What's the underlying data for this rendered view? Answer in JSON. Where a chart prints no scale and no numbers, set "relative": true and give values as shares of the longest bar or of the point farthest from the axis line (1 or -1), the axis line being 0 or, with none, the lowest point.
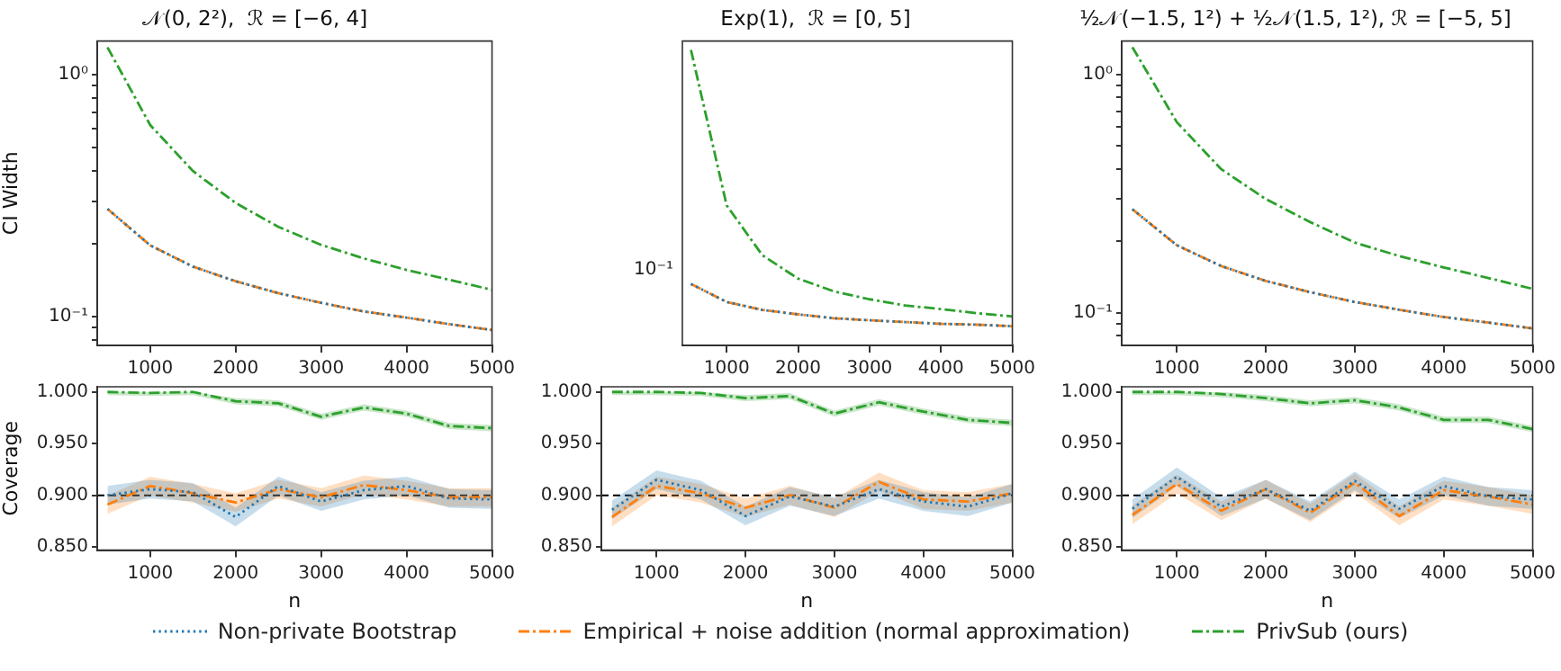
{
  "chart_data": [
    {
      "type": "line",
      "title": "𝒩(0, 2²),  ℛ = [−6, 4]",
      "ylabel": "CI Width",
      "log": "y",
      "x": [
        500,
        1000,
        1500,
        2000,
        2500,
        3000,
        3500,
        4000,
        4500,
        5000
      ],
      "xlim": [
        380,
        5000
      ],
      "xticks": [
        1000,
        2000,
        3000,
        4000,
        5000
      ],
      "ylim": [
        0.076,
        1.38
      ],
      "yticks": [
        {
          "value": 1,
          "label": "10⁰"
        },
        {
          "value": 0.1,
          "label": "10⁻¹"
        },
        {
          "value": 0.08,
          "label": null
        },
        {
          "value": 0.09,
          "label": null
        },
        {
          "value": 0.2,
          "label": null
        },
        {
          "value": 0.3,
          "label": null
        },
        {
          "value": 0.4,
          "label": null
        },
        {
          "value": 0.5,
          "label": null
        },
        {
          "value": 0.6,
          "label": null
        },
        {
          "value": 0.7,
          "label": null
        },
        {
          "value": 0.8,
          "label": null
        },
        {
          "value": 0.9,
          "label": null
        }
      ],
      "series": [
        {
          "color": "#1f77b4",
          "line_style": "dotted",
          "values": [
            0.279,
            0.197,
            0.161,
            0.14,
            0.125,
            0.114,
            0.105,
            0.099,
            0.093,
            0.088
          ]
        },
        {
          "color": "#ff7f0e",
          "line_style": "dashed",
          "values": [
            0.279,
            0.197,
            0.161,
            0.14,
            0.125,
            0.114,
            0.105,
            0.099,
            0.093,
            0.088
          ]
        },
        {
          "color": "#2ca02c",
          "line_style": "dashed",
          "values": [
            1.3,
            0.62,
            0.4,
            0.295,
            0.235,
            0.198,
            0.174,
            0.156,
            0.142,
            0.129
          ]
        }
      ]
    },
    {
      "type": "line",
      "title": "Exp(1),  ℛ = [0, 5]",
      "relative": true,
      "annotations": [
        "10⁻¹"
      ],
      "x": [
        500,
        1000,
        1500,
        2000,
        2500,
        3000,
        3500,
        4000,
        4500,
        5000
      ],
      "xlim": [
        380,
        5000
      ],
      "xticks": [
        1000,
        2000,
        3000,
        4000,
        5000
      ],
      "series": [
        {
          "color": "#1f77b4",
          "line_style": "dotted",
          "values": [
            0.208,
            0.147,
            0.12,
            0.105,
            0.092,
            0.085,
            0.079,
            0.073,
            0.07,
            0.065
          ]
        },
        {
          "color": "#ff7f0e",
          "line_style": "dashed",
          "values": [
            0.208,
            0.147,
            0.12,
            0.105,
            0.092,
            0.085,
            0.079,
            0.073,
            0.07,
            0.065
          ]
        },
        {
          "color": "#2ca02c",
          "line_style": "dashed",
          "values": [
            1,
            0.474,
            0.305,
            0.226,
            0.183,
            0.156,
            0.135,
            0.123,
            0.109,
            0.098
          ]
        }
      ]
    },
    {
      "type": "line",
      "title": "½𝒩(−1.5, 1²) + ½𝒩(1.5, 1²), ℛ = [−5, 5]",
      "log": "y",
      "x": [
        500,
        1000,
        1500,
        2000,
        2500,
        3000,
        3500,
        4000,
        4500,
        5000
      ],
      "xlim": [
        380,
        5000
      ],
      "xticks": [
        1000,
        2000,
        3000,
        4000,
        5000
      ],
      "ylim": [
        0.073,
        1.38
      ],
      "yticks": [
        {
          "value": 1,
          "label": "10⁰"
        },
        {
          "value": 0.1,
          "label": "10⁻¹"
        },
        {
          "value": 0.08,
          "label": null
        },
        {
          "value": 0.09,
          "label": null
        },
        {
          "value": 0.2,
          "label": null
        },
        {
          "value": 0.3,
          "label": null
        },
        {
          "value": 0.4,
          "label": null
        },
        {
          "value": 0.5,
          "label": null
        },
        {
          "value": 0.6,
          "label": null
        },
        {
          "value": 0.7,
          "label": null
        },
        {
          "value": 0.8,
          "label": null
        },
        {
          "value": 0.9,
          "label": null
        }
      ],
      "series": [
        {
          "color": "#1f77b4",
          "line_style": "dotted",
          "values": [
            0.272,
            0.192,
            0.157,
            0.136,
            0.122,
            0.111,
            0.103,
            0.096,
            0.091,
            0.086
          ]
        },
        {
          "color": "#ff7f0e",
          "line_style": "dashed",
          "values": [
            0.272,
            0.192,
            0.157,
            0.136,
            0.122,
            0.111,
            0.103,
            0.096,
            0.091,
            0.086
          ]
        },
        {
          "color": "#2ca02c",
          "line_style": "dashed",
          "values": [
            1.3,
            0.63,
            0.4,
            0.3,
            0.24,
            0.197,
            0.173,
            0.155,
            0.14,
            0.126
          ]
        }
      ]
    },
    {
      "type": "line",
      "xlabel": "n",
      "ylabel": "Coverage",
      "x": [
        500,
        1000,
        1500,
        2000,
        2500,
        3000,
        3500,
        4000,
        4500,
        5000
      ],
      "xlim": [
        380,
        5000
      ],
      "xticks": [
        1000,
        2000,
        3000,
        4000,
        5000
      ],
      "ylim": [
        0.847,
        1.005
      ],
      "yticks": [
        {
          "value": 0.85,
          "label": "0.850"
        },
        {
          "value": 0.9,
          "label": "0.900"
        },
        {
          "value": 0.95,
          "label": "0.950"
        },
        {
          "value": 1,
          "label": "1.000"
        }
      ],
      "ref_lines": [
        {
          "axis": "y",
          "value": 0.9,
          "color": "#000000",
          "line_style": "dashed"
        }
      ],
      "series": [
        {
          "color": "#1f77b4",
          "line_style": "dotted",
          "values": [
            0.9,
            0.906,
            0.903,
            0.879,
            0.909,
            0.894,
            0.905,
            0.909,
            0.897,
            0.896
          ],
          "lower": [
            0.891,
            0.897,
            0.894,
            0.87,
            0.9,
            0.885,
            0.896,
            0.9,
            0.888,
            0.887
          ],
          "upper": [
            0.909,
            0.915,
            0.912,
            0.888,
            0.918,
            0.903,
            0.914,
            0.918,
            0.906,
            0.905
          ]
        },
        {
          "color": "#ff7f0e",
          "line_style": "dashed",
          "values": [
            0.891,
            0.909,
            0.902,
            0.893,
            0.906,
            0.898,
            0.91,
            0.905,
            0.898,
            0.898
          ],
          "lower": [
            0.882,
            0.9,
            0.893,
            0.884,
            0.897,
            0.889,
            0.901,
            0.896,
            0.889,
            0.889
          ],
          "upper": [
            0.9,
            0.918,
            0.911,
            0.902,
            0.915,
            0.907,
            0.919,
            0.914,
            0.907,
            0.907
          ]
        },
        {
          "color": "#2ca02c",
          "line_style": "dashed",
          "values": [
            1.0,
            0.999,
            1.0,
            0.991,
            0.989,
            0.976,
            0.985,
            0.979,
            0.967,
            0.965
          ],
          "lower": [
            0.997,
            0.996,
            0.997,
            0.988,
            0.986,
            0.973,
            0.982,
            0.976,
            0.964,
            0.962
          ],
          "upper": [
            1.0,
            1.0,
            1.0,
            0.994,
            0.992,
            0.979,
            0.988,
            0.982,
            0.97,
            0.968
          ]
        }
      ]
    },
    {
      "type": "line",
      "xlabel": "n",
      "legend": "bottom",
      "x": [
        500,
        1000,
        1500,
        2000,
        2500,
        3000,
        3500,
        4000,
        4500,
        5000
      ],
      "xlim": [
        380,
        5000
      ],
      "xticks": [
        1000,
        2000,
        3000,
        4000,
        5000
      ],
      "ylim": [
        0.847,
        1.005
      ],
      "yticks": [
        {
          "value": 0.85,
          "label": "0.850"
        },
        {
          "value": 0.9,
          "label": "0.900"
        },
        {
          "value": 0.95,
          "label": "0.950"
        },
        {
          "value": 1,
          "label": "1.000"
        }
      ],
      "ref_lines": [
        {
          "axis": "y",
          "value": 0.9,
          "color": "#000000",
          "line_style": "dashed"
        }
      ],
      "series": [
        {
          "name": "Non-private Bootstrap",
          "color": "#1f77b4",
          "line_style": "dotted",
          "values": [
            0.886,
            0.915,
            0.905,
            0.88,
            0.899,
            0.889,
            0.906,
            0.894,
            0.889,
            0.902
          ],
          "lower": [
            0.877,
            0.906,
            0.896,
            0.871,
            0.89,
            0.88,
            0.897,
            0.885,
            0.88,
            0.893
          ],
          "upper": [
            0.895,
            0.924,
            0.914,
            0.889,
            0.908,
            0.898,
            0.915,
            0.903,
            0.898,
            0.911
          ]
        },
        {
          "name": "Empirical + noise addition (normal approximation)",
          "color": "#ff7f0e",
          "line_style": "dashed",
          "values": [
            0.879,
            0.909,
            0.902,
            0.888,
            0.9,
            0.888,
            0.913,
            0.896,
            0.894,
            0.902
          ],
          "lower": [
            0.87,
            0.9,
            0.893,
            0.879,
            0.891,
            0.879,
            0.904,
            0.887,
            0.885,
            0.893
          ],
          "upper": [
            0.888,
            0.918,
            0.911,
            0.897,
            0.909,
            0.897,
            0.922,
            0.905,
            0.903,
            0.911
          ]
        },
        {
          "name": "PrivSub (ours)",
          "color": "#2ca02c",
          "line_style": "dashed",
          "values": [
            1.0,
            1.0,
            0.999,
            0.994,
            0.996,
            0.979,
            0.99,
            0.981,
            0.973,
            0.97
          ],
          "lower": [
            0.997,
            0.997,
            0.996,
            0.991,
            0.993,
            0.976,
            0.987,
            0.978,
            0.97,
            0.967
          ],
          "upper": [
            1.0,
            1.0,
            1.0,
            0.997,
            0.999,
            0.982,
            0.993,
            0.984,
            0.976,
            0.973
          ]
        }
      ]
    },
    {
      "type": "line",
      "xlabel": "n",
      "x": [
        500,
        1000,
        1500,
        2000,
        2500,
        3000,
        3500,
        4000,
        4500,
        5000
      ],
      "xlim": [
        380,
        5000
      ],
      "xticks": [
        1000,
        2000,
        3000,
        4000,
        5000
      ],
      "ylim": [
        0.847,
        1.005
      ],
      "yticks": [
        {
          "value": 0.85,
          "label": "0.850"
        },
        {
          "value": 0.9,
          "label": "0.900"
        },
        {
          "value": 0.95,
          "label": "0.950"
        },
        {
          "value": 1,
          "label": "1.000"
        }
      ],
      "ref_lines": [
        {
          "axis": "y",
          "value": 0.9,
          "color": "#000000",
          "line_style": "dashed"
        }
      ],
      "series": [
        {
          "color": "#1f77b4",
          "line_style": "dotted",
          "values": [
            0.887,
            0.918,
            0.889,
            0.906,
            0.885,
            0.914,
            0.887,
            0.909,
            0.899,
            0.896
          ],
          "lower": [
            0.878,
            0.909,
            0.88,
            0.897,
            0.876,
            0.905,
            0.878,
            0.9,
            0.89,
            0.887
          ],
          "upper": [
            0.896,
            0.927,
            0.898,
            0.915,
            0.894,
            0.923,
            0.896,
            0.918,
            0.908,
            0.905
          ]
        },
        {
          "color": "#ff7f0e",
          "line_style": "dashed",
          "values": [
            0.881,
            0.911,
            0.885,
            0.906,
            0.883,
            0.912,
            0.88,
            0.905,
            0.899,
            0.891
          ],
          "lower": [
            0.872,
            0.902,
            0.876,
            0.897,
            0.874,
            0.903,
            0.871,
            0.896,
            0.89,
            0.882
          ],
          "upper": [
            0.89,
            0.92,
            0.894,
            0.915,
            0.892,
            0.921,
            0.889,
            0.914,
            0.908,
            0.9
          ]
        },
        {
          "color": "#2ca02c",
          "line_style": "dashed",
          "values": [
            1.0,
            1.0,
            0.998,
            0.994,
            0.989,
            0.992,
            0.985,
            0.973,
            0.973,
            0.964
          ],
          "lower": [
            0.997,
            0.997,
            0.995,
            0.991,
            0.986,
            0.989,
            0.982,
            0.97,
            0.97,
            0.961
          ],
          "upper": [
            1.0,
            1.0,
            1.0,
            0.997,
            0.992,
            0.995,
            0.988,
            0.976,
            0.976,
            0.967
          ]
        }
      ]
    }
  ]
}
